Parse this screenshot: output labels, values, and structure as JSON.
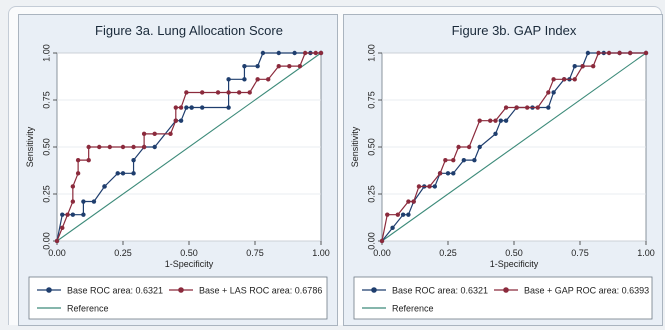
{
  "chart_data": [
    {
      "type": "line",
      "title": "Figure 3a. Lung Allocation Score",
      "xlabel": "1-Specificity",
      "ylabel": "Sensitivity",
      "xlim": [
        0,
        1
      ],
      "ylim": [
        0,
        1
      ],
      "xticks": [
        "0.00",
        "0.25",
        "0.50",
        "0.75",
        "1.00"
      ],
      "yticks": [
        "0.00",
        "0.25",
        "0.50",
        "0.75",
        "1.00"
      ],
      "legend_position": "bottom",
      "series": [
        {
          "name": "Base ROC area: 0.6321",
          "color": "#1f3e6e",
          "marker": "circle",
          "x": [
            0,
            0.02,
            0.06,
            0.1,
            0.1,
            0.14,
            0.18,
            0.18,
            0.23,
            0.25,
            0.29,
            0.29,
            0.33,
            0.37,
            0.45,
            0.47,
            0.49,
            0.51,
            0.51,
            0.55,
            0.65,
            0.65,
            0.71,
            0.71,
            0.76,
            0.78,
            0.84,
            0.9,
            0.96,
            1.0
          ],
          "y": [
            0,
            0.14,
            0.14,
            0.14,
            0.21,
            0.21,
            0.29,
            0.29,
            0.36,
            0.36,
            0.36,
            0.43,
            0.5,
            0.5,
            0.64,
            0.64,
            0.71,
            0.71,
            0.71,
            0.71,
            0.71,
            0.86,
            0.86,
            0.93,
            0.93,
            1.0,
            1.0,
            1.0,
            1.0,
            1.0
          ]
        },
        {
          "name": "Base + LAS ROC area: 0.6786",
          "color": "#8b2a3c",
          "marker": "circle",
          "x": [
            0,
            0.02,
            0.04,
            0.06,
            0.06,
            0.08,
            0.08,
            0.12,
            0.12,
            0.16,
            0.2,
            0.25,
            0.29,
            0.33,
            0.33,
            0.37,
            0.43,
            0.45,
            0.45,
            0.47,
            0.49,
            0.55,
            0.61,
            0.65,
            0.69,
            0.73,
            0.76,
            0.8,
            0.84,
            0.88,
            0.92,
            0.94,
            0.98,
            1.0
          ],
          "y": [
            0,
            0.07,
            0.14,
            0.21,
            0.29,
            0.36,
            0.43,
            0.43,
            0.5,
            0.5,
            0.5,
            0.5,
            0.5,
            0.5,
            0.57,
            0.57,
            0.57,
            0.64,
            0.71,
            0.71,
            0.79,
            0.79,
            0.79,
            0.79,
            0.79,
            0.79,
            0.86,
            0.86,
            0.93,
            0.93,
            0.93,
            1.0,
            1.0,
            1.0
          ]
        },
        {
          "name": "Reference",
          "color": "#3d8b7a",
          "marker": "none",
          "x": [
            0,
            1
          ],
          "y": [
            0,
            1
          ]
        }
      ]
    },
    {
      "type": "line",
      "title": "Figure 3b. GAP Index",
      "xlabel": "1-Specificity",
      "ylabel": "Sensitivity",
      "xlim": [
        0,
        1
      ],
      "ylim": [
        0,
        1
      ],
      "xticks": [
        "0.00",
        "0.25",
        "0.50",
        "0.75",
        "1.00"
      ],
      "yticks": [
        "0.00",
        "0.25",
        "0.50",
        "0.75",
        "1.00"
      ],
      "legend_position": "bottom",
      "series": [
        {
          "name": "Base ROC area: 0.6321",
          "color": "#1f3e6e",
          "marker": "circle",
          "x": [
            0,
            0.04,
            0.08,
            0.1,
            0.12,
            0.16,
            0.2,
            0.22,
            0.25,
            0.27,
            0.31,
            0.35,
            0.37,
            0.43,
            0.45,
            0.47,
            0.51,
            0.57,
            0.63,
            0.65,
            0.69,
            0.71,
            0.73,
            0.76,
            0.78,
            0.84,
            0.9,
            0.94,
            1.0
          ],
          "y": [
            0,
            0.07,
            0.14,
            0.14,
            0.21,
            0.29,
            0.29,
            0.36,
            0.36,
            0.36,
            0.43,
            0.43,
            0.5,
            0.57,
            0.64,
            0.64,
            0.71,
            0.71,
            0.71,
            0.79,
            0.86,
            0.86,
            0.93,
            0.93,
            1.0,
            1.0,
            1.0,
            1.0,
            1.0
          ]
        },
        {
          "name": "Base + GAP ROC area: 0.6393",
          "color": "#8b2a3c",
          "marker": "circle",
          "x": [
            0,
            0.02,
            0.06,
            0.1,
            0.12,
            0.14,
            0.18,
            0.22,
            0.24,
            0.27,
            0.29,
            0.33,
            0.37,
            0.41,
            0.43,
            0.47,
            0.51,
            0.55,
            0.59,
            0.63,
            0.65,
            0.69,
            0.73,
            0.76,
            0.8,
            0.82,
            0.86,
            0.9,
            0.94,
            1.0
          ],
          "y": [
            0,
            0.14,
            0.14,
            0.21,
            0.21,
            0.29,
            0.29,
            0.36,
            0.43,
            0.43,
            0.5,
            0.5,
            0.64,
            0.64,
            0.64,
            0.71,
            0.71,
            0.71,
            0.71,
            0.79,
            0.86,
            0.86,
            0.86,
            0.93,
            0.93,
            1.0,
            1.0,
            1.0,
            1.0,
            1.0
          ]
        },
        {
          "name": "Reference",
          "color": "#3d8b7a",
          "marker": "none",
          "x": [
            0,
            1
          ],
          "y": [
            0,
            1
          ]
        }
      ]
    }
  ]
}
